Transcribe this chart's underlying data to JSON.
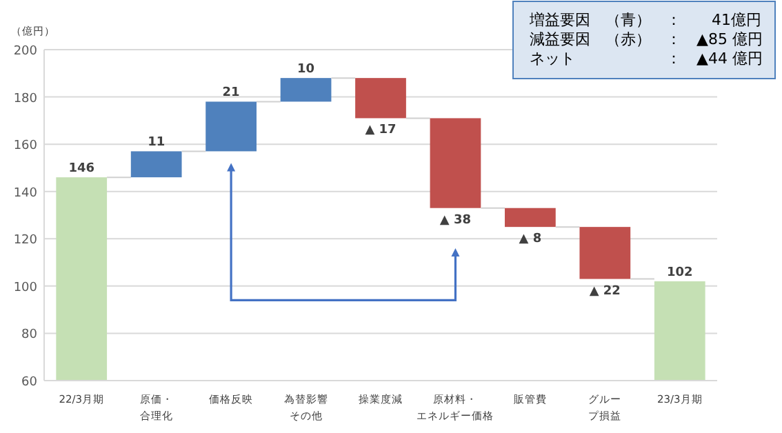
{
  "chart_data": {
    "type": "bar",
    "ylabel": "（億円）",
    "categories": [
      "22/3月期",
      "原価・合理化",
      "価格反映",
      "為替影響その他",
      "操業度減",
      "原材料・エネルギー価格",
      "販管費",
      "グループ損益",
      "23/3月期"
    ],
    "values": [
      146,
      11,
      21,
      10,
      -17,
      -38,
      -8,
      -22,
      102
    ],
    "base": [
      null,
      146,
      157,
      178,
      188,
      171,
      133,
      125,
      null
    ],
    "colors": [
      "#c5e0b4",
      "#4f81bd",
      "#4f81bd",
      "#4f81bd",
      "#c0504d",
      "#c0504d",
      "#c0504d",
      "#c0504d",
      "#c5e0b4"
    ],
    "value_labels": [
      "146",
      "11",
      "21",
      "10",
      "▲ 17",
      "▲ 38",
      "▲ 8",
      "▲ 22",
      "102"
    ],
    "ylim": [
      60,
      200
    ],
    "yticks": [
      60,
      80,
      100,
      120,
      140,
      160,
      180,
      200
    ],
    "grid": "y",
    "annotations": [
      "増益要因　（青）　：　　41億円",
      "減益要因　（赤）　：　▲85 億円",
      "ネット　　　　　　：　▲44 億円"
    ]
  }
}
